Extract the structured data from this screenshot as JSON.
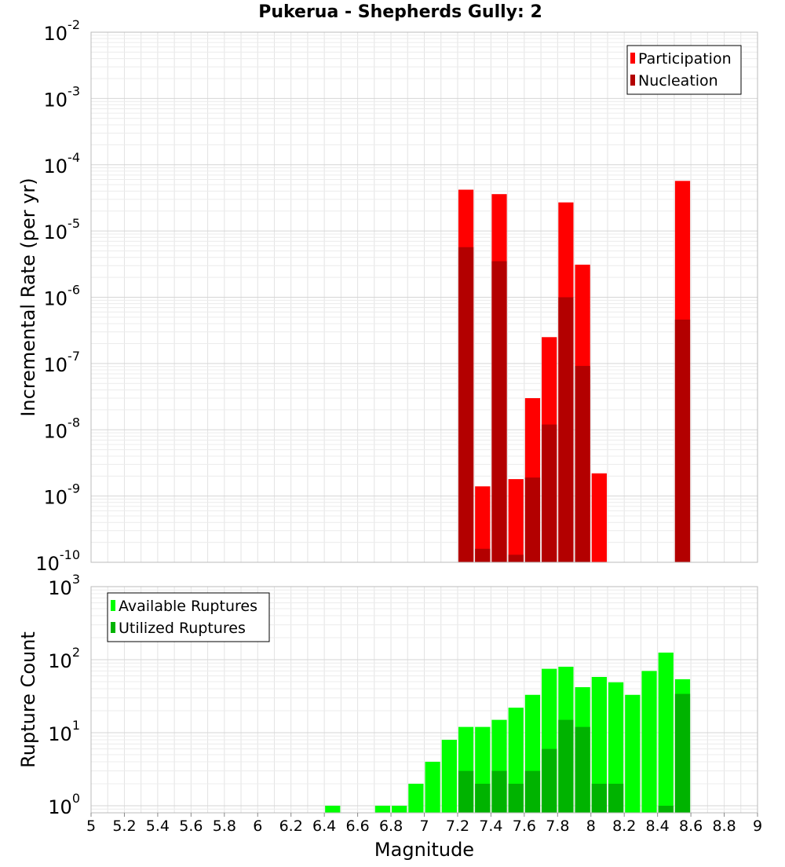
{
  "title": "Pukerua - Shepherds Gully: 2",
  "colors": {
    "participation": "#ff0000",
    "nucleation": "#b30000",
    "available": "#00ff00",
    "utilized": "#00b300",
    "grid": "#e3e3e3",
    "axis": "#bbbbbb"
  },
  "chart_data": [
    {
      "type": "bar",
      "ylabel": "Incremental Rate (per yr)",
      "yscale": "log",
      "ylim": [
        1e-10,
        0.01
      ],
      "xlim": [
        5,
        9
      ],
      "grid": true,
      "legend_position": "top-right",
      "y_ticks": [
        {
          "base": "10",
          "exp": "-10"
        },
        {
          "base": "10",
          "exp": "-9"
        },
        {
          "base": "10",
          "exp": "-8"
        },
        {
          "base": "10",
          "exp": "-7"
        },
        {
          "base": "10",
          "exp": "-6"
        },
        {
          "base": "10",
          "exp": "-5"
        },
        {
          "base": "10",
          "exp": "-4"
        },
        {
          "base": "10",
          "exp": "-3"
        },
        {
          "base": "10",
          "exp": "-2"
        }
      ],
      "series": [
        {
          "name": "Participation",
          "color": "#ff0000",
          "x": [
            7.25,
            7.35,
            7.45,
            7.55,
            7.65,
            7.75,
            7.85,
            7.95,
            8.05,
            8.55
          ],
          "values": [
            4.2e-05,
            1.4e-09,
            3.6e-05,
            1.8e-09,
            3e-08,
            2.5e-07,
            2.7e-05,
            3.1e-06,
            2.2e-09,
            5.7e-05
          ]
        },
        {
          "name": "Nucleation",
          "color": "#b30000",
          "x": [
            7.25,
            7.35,
            7.45,
            7.55,
            7.65,
            7.75,
            7.85,
            7.95,
            8.55
          ],
          "values": [
            5.7e-06,
            1.6e-10,
            3.5e-06,
            1.3e-10,
            1.9e-09,
            1.2e-08,
            1e-06,
            9.2e-08,
            4.6e-07
          ]
        }
      ]
    },
    {
      "type": "bar",
      "xlabel": "Magnitude",
      "ylabel": "Rupture Count",
      "yscale": "log",
      "ylim": [
        0.8,
        1000
      ],
      "xlim": [
        5,
        9
      ],
      "grid": true,
      "legend_position": "top-left",
      "y_ticks": [
        {
          "base": "10",
          "exp": "0"
        },
        {
          "base": "10",
          "exp": "1"
        },
        {
          "base": "10",
          "exp": "2"
        },
        {
          "base": "10",
          "exp": "3"
        }
      ],
      "x_ticks": [
        "5",
        "5.2",
        "5.4",
        "5.6",
        "5.8",
        "6",
        "6.2",
        "6.4",
        "6.6",
        "6.8",
        "7",
        "7.2",
        "7.4",
        "7.6",
        "7.8",
        "8",
        "8.2",
        "8.4",
        "8.6",
        "8.8",
        "9"
      ],
      "series": [
        {
          "name": "Available Ruptures",
          "color": "#00ff00",
          "x": [
            6.45,
            6.75,
            6.85,
            6.95,
            7.05,
            7.15,
            7.25,
            7.35,
            7.45,
            7.55,
            7.65,
            7.75,
            7.85,
            7.95,
            8.05,
            8.15,
            8.25,
            8.35,
            8.45,
            8.55
          ],
          "values": [
            1,
            1,
            1,
            2,
            4,
            8,
            12,
            12,
            15,
            22,
            33,
            75,
            80,
            42,
            58,
            49,
            33,
            70,
            125,
            54
          ]
        },
        {
          "name": "Utilized Ruptures",
          "color": "#00b300",
          "x": [
            7.25,
            7.35,
            7.45,
            7.55,
            7.65,
            7.75,
            7.85,
            7.95,
            8.05,
            8.15,
            8.45,
            8.55
          ],
          "values": [
            3,
            2,
            3,
            2,
            3,
            6,
            15,
            12,
            2,
            2,
            1,
            34
          ]
        }
      ]
    }
  ]
}
